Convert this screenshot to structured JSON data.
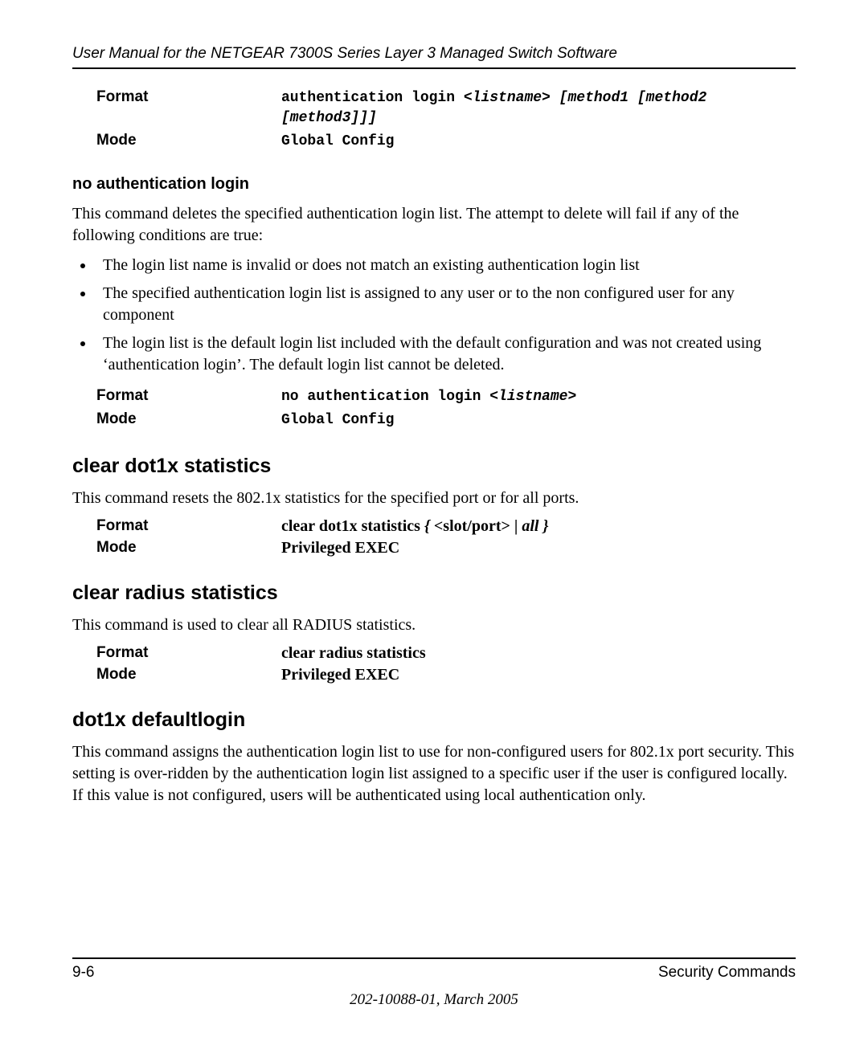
{
  "header": {
    "title": "User Manual for the NETGEAR 7300S Series Layer 3 Managed Switch Software"
  },
  "block1": {
    "format_label": "Format",
    "format_prefix": "authentication login ",
    "format_italic": "<listname> [method1 [method2 [method3]]]",
    "mode_label": "Mode",
    "mode_value": "Global Config"
  },
  "noauth": {
    "heading": "no authentication login",
    "para": "This command deletes the specified authentication login list. The attempt to delete will fail if any of the following conditions are true:",
    "bullets": [
      "The login list name is invalid or does not match an existing authentication login list",
      "The specified authentication login list is assigned to any user or to the non configured user for any component",
      "The login list is the default login list included with the default configuration and was not created using ‘authentication login’. The default login list cannot be deleted."
    ],
    "format_label": "Format",
    "format_prefix": "no authentication login ",
    "format_italic": "<listname>",
    "mode_label": "Mode",
    "mode_value": "Global Config"
  },
  "cleardot1x": {
    "heading": "clear dot1x statistics",
    "para": "This command resets the 802.1x statistics for the specified port or for all ports.",
    "format_label": "Format",
    "format_prefix": "clear dot1x statistics ",
    "format_italic1": "{",
    "format_mid": " <slot/port> | ",
    "format_italic2": "all }",
    "mode_label": "Mode",
    "mode_value": "Privileged EXEC"
  },
  "clearradius": {
    "heading": "clear radius statistics",
    "para": "This command is used to clear all RADIUS statistics.",
    "format_label": "Format",
    "format_value": "clear radius statistics",
    "mode_label": "Mode",
    "mode_value": "Privileged EXEC"
  },
  "dot1xdefault": {
    "heading": "dot1x defaultlogin",
    "para": "This command assigns the authentication login list to use for non-configured users for 802.1x port security. This setting is over-ridden by the authentication login list assigned to a specific user if the user is configured locally. If this value is not configured, users will be authenticated using local authentication only."
  },
  "footer": {
    "left": "9-6",
    "right": "Security Commands",
    "center": "202-10088-01, March 2005"
  }
}
